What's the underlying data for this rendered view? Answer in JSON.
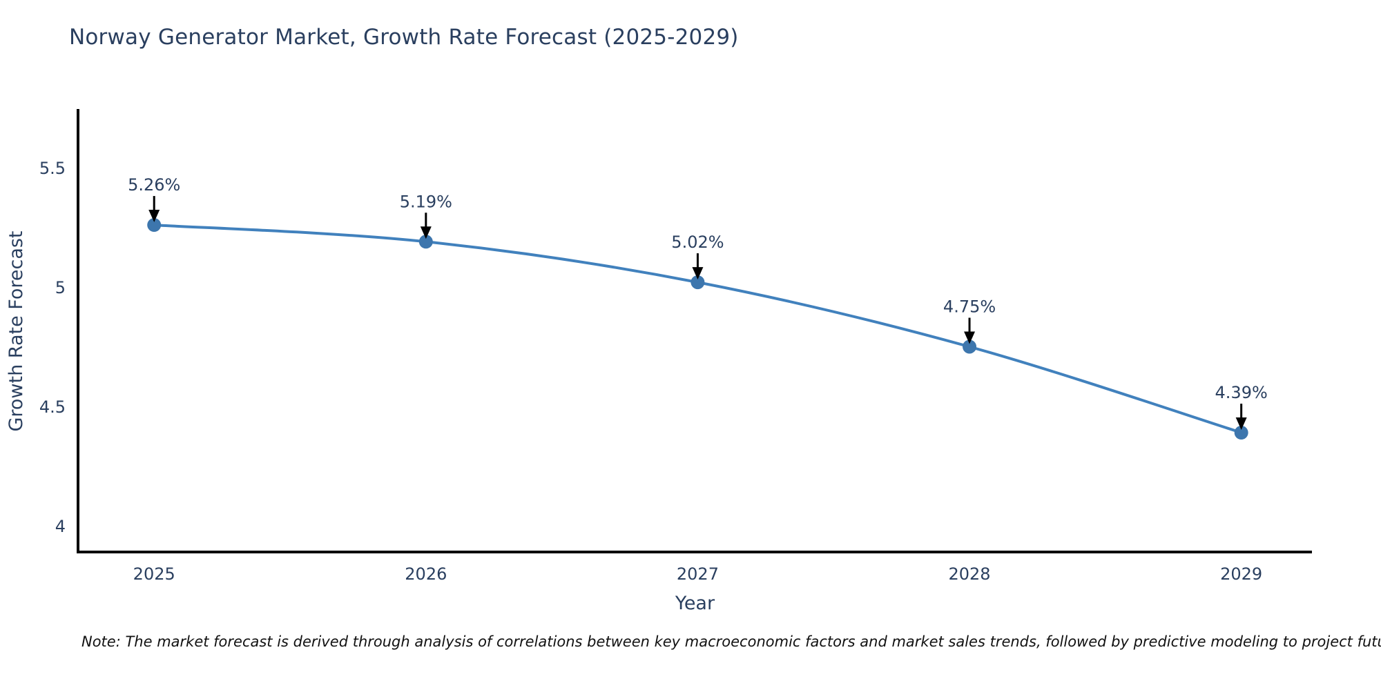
{
  "header": {
    "title": "Norway Generator Market, Growth Rate Forecast (2025-2029)"
  },
  "footnote": {
    "text": "Note: The market forecast is derived through analysis of correlations between key macroeconomic factors and market sales trends, followed by predictive modeling to project future sales"
  },
  "chart_data": {
    "type": "line",
    "title": "Norway Generator Market, Growth Rate Forecast (2025-2029)",
    "xlabel": "Year",
    "ylabel": "Growth Rate Forecast",
    "x": [
      2025,
      2026,
      2027,
      2028,
      2029
    ],
    "values": [
      5.26,
      5.19,
      5.02,
      4.75,
      4.39
    ],
    "point_labels": [
      "5.26%",
      "5.19%",
      "5.02%",
      "4.75%",
      "4.39%"
    ],
    "xticks": [
      "2025",
      "2026",
      "2027",
      "2028",
      "2029"
    ],
    "yticks": [
      4,
      4.5,
      5,
      5.5
    ],
    "xlim": [
      2024.72,
      2029.26
    ],
    "ylim": [
      3.89,
      5.74
    ],
    "grid": false,
    "legend": "none",
    "annotations_have_arrows": true,
    "colors": {
      "line": "#4181bd",
      "marker": "#3d76ad",
      "axis_line": "#000000",
      "tick_text": "#2a3f5f",
      "annotation_text": "#2a3f5f",
      "annotation_arrow": "#000000",
      "title_text": "#2a3f5f",
      "background": "#ffffff"
    }
  }
}
